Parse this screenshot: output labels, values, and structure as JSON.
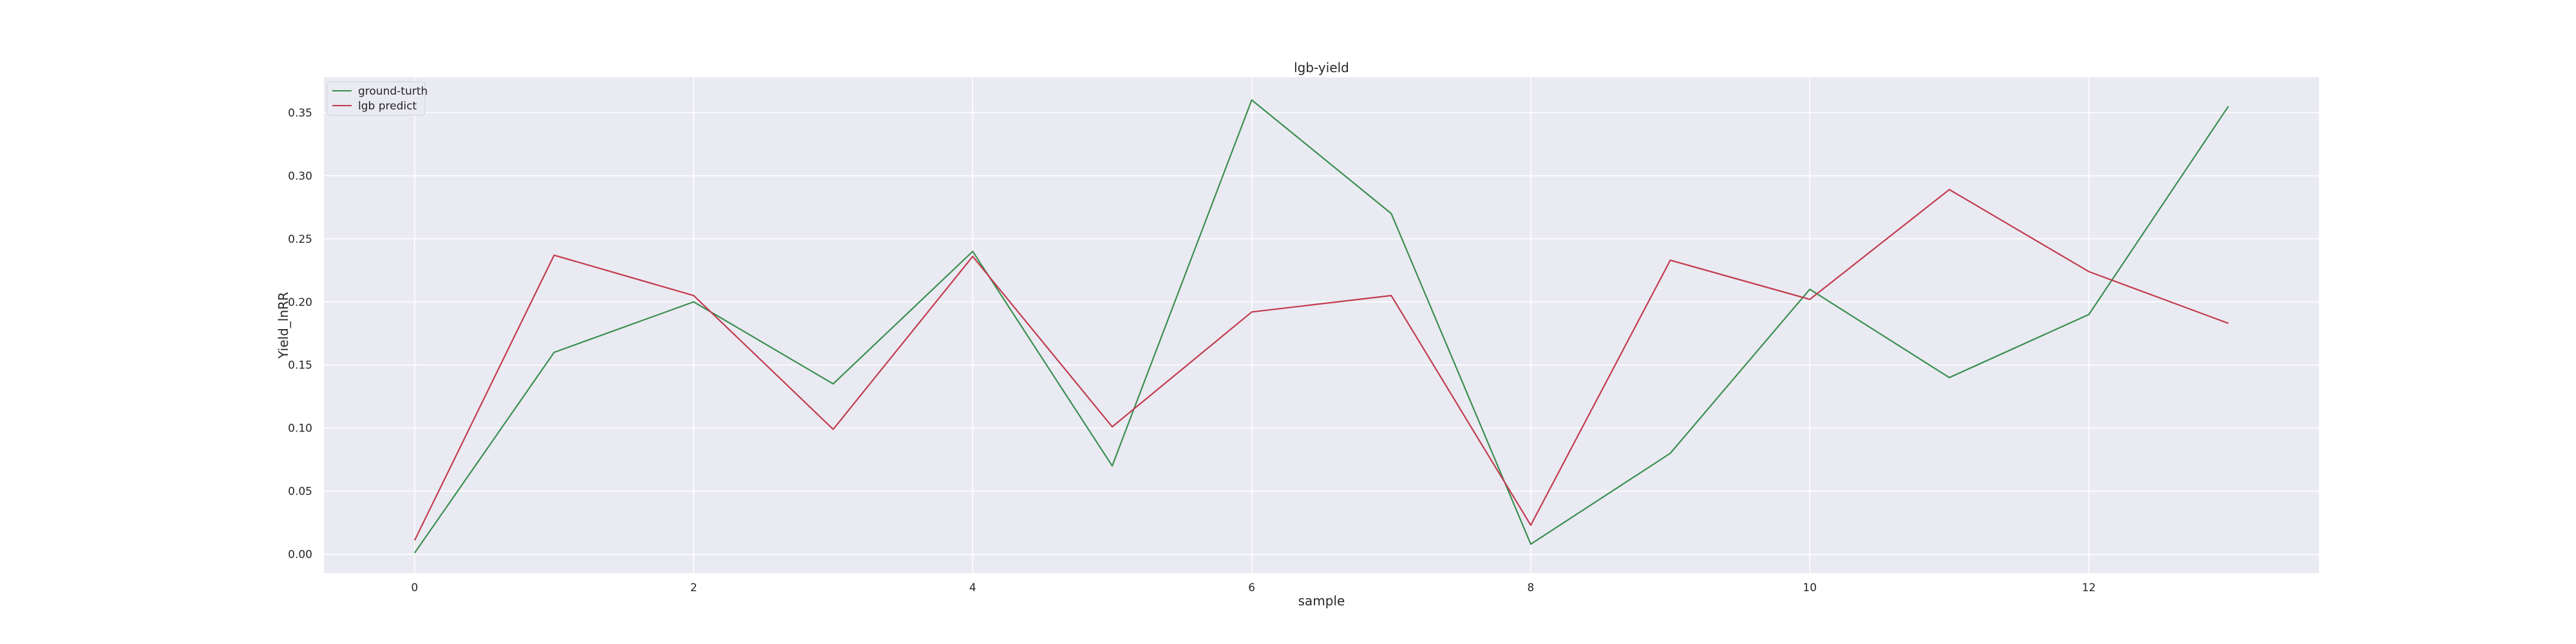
{
  "chart_data": {
    "type": "line",
    "title": "lgb-yield",
    "xlabel": "sample",
    "ylabel": "Yield_lnRR",
    "x": [
      0,
      1,
      2,
      3,
      4,
      5,
      6,
      7,
      8,
      9,
      10,
      11,
      12,
      13
    ],
    "xlim": [
      -0.65,
      13.65
    ],
    "ylim": [
      -0.015,
      0.378
    ],
    "xticks": [
      0,
      2,
      4,
      6,
      8,
      10,
      12
    ],
    "yticks": [
      "0.00",
      "0.05",
      "0.10",
      "0.15",
      "0.20",
      "0.25",
      "0.30",
      "0.35"
    ],
    "grid": true,
    "legend_position": "top-left",
    "series": [
      {
        "name": "ground-turth",
        "color": "#3a8f4f",
        "values": [
          0.001,
          0.16,
          0.2,
          0.135,
          0.24,
          0.07,
          0.36,
          0.27,
          0.008,
          0.08,
          0.21,
          0.14,
          0.19,
          0.355
        ]
      },
      {
        "name": "lgb predict",
        "color": "#c23b4e",
        "values": [
          0.011,
          0.237,
          0.205,
          0.099,
          0.236,
          0.101,
          0.192,
          0.205,
          0.023,
          0.233,
          0.202,
          0.289,
          0.224,
          0.183
        ]
      }
    ]
  }
}
